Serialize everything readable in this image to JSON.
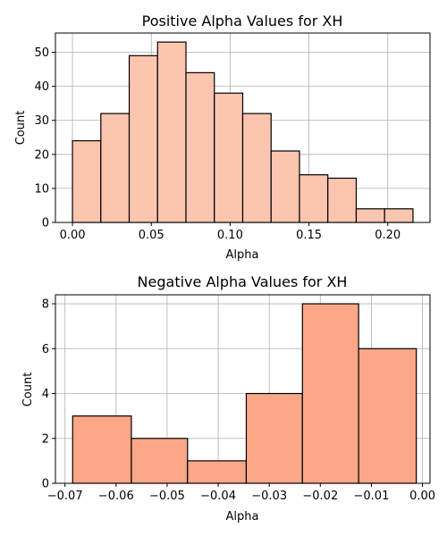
{
  "chart_data": [
    {
      "type": "bar",
      "title": "Positive Alpha Values for XH",
      "xlabel": "Alpha",
      "ylabel": "Count",
      "xlim": [
        -0.0108,
        0.2268
      ],
      "ylim": [
        0,
        55.65
      ],
      "xticks": [
        "0.00",
        "0.05",
        "0.10",
        "0.15",
        "0.20"
      ],
      "yticks": [
        "0",
        "10",
        "20",
        "30",
        "40",
        "50"
      ],
      "grid": true,
      "color": "#fcc5b0",
      "bins": [
        {
          "x0": 0.0,
          "x1": 0.018,
          "count": 24
        },
        {
          "x0": 0.018,
          "x1": 0.036,
          "count": 32
        },
        {
          "x0": 0.036,
          "x1": 0.054,
          "count": 49
        },
        {
          "x0": 0.054,
          "x1": 0.072,
          "count": 53
        },
        {
          "x0": 0.072,
          "x1": 0.09,
          "count": 44
        },
        {
          "x0": 0.09,
          "x1": 0.108,
          "count": 38
        },
        {
          "x0": 0.108,
          "x1": 0.126,
          "count": 32
        },
        {
          "x0": 0.126,
          "x1": 0.144,
          "count": 21
        },
        {
          "x0": 0.144,
          "x1": 0.162,
          "count": 14
        },
        {
          "x0": 0.162,
          "x1": 0.18,
          "count": 13
        },
        {
          "x0": 0.18,
          "x1": 0.198,
          "count": 4
        },
        {
          "x0": 0.198,
          "x1": 0.216,
          "count": 4
        }
      ]
    },
    {
      "type": "bar",
      "title": "Negative Alpha Values for XH",
      "xlabel": "Alpha",
      "ylabel": "Count",
      "xlim": [
        -0.07187,
        0.00148
      ],
      "ylim": [
        0,
        8.4
      ],
      "xticks": [
        "-0.07",
        "-0.06",
        "-0.05",
        "-0.04",
        "-0.03",
        "-0.02",
        "-0.01",
        "0.00"
      ],
      "yticks": [
        "0",
        "2",
        "4",
        "6",
        "8"
      ],
      "grid": true,
      "color": "#fca787",
      "bins": [
        {
          "x0": -0.0685,
          "x1": -0.057,
          "count": 3
        },
        {
          "x0": -0.057,
          "x1": -0.046,
          "count": 2
        },
        {
          "x0": -0.046,
          "x1": -0.0345,
          "count": 1
        },
        {
          "x0": -0.0345,
          "x1": -0.0235,
          "count": 4
        },
        {
          "x0": -0.0235,
          "x1": -0.0125,
          "count": 8
        },
        {
          "x0": -0.0125,
          "x1": -0.0012,
          "count": 6
        }
      ]
    }
  ]
}
